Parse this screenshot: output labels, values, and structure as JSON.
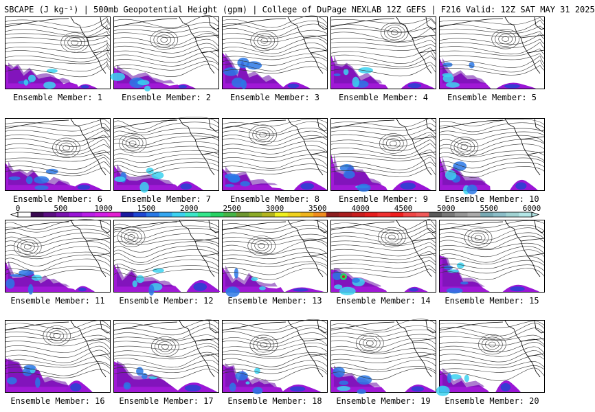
{
  "title": "SBCAPE (J kg⁻¹) | 500mb Geopotential Height (gpm) | College of DuPage NEXLAB 12Z GEFS | F216 Valid: 12Z SAT MAY 31 2025",
  "colorbar": {
    "ticks": [
      "0",
      "500",
      "1000",
      "1500",
      "2000",
      "2500",
      "3000",
      "3500",
      "4000",
      "4500",
      "5000",
      "5500",
      "6000"
    ],
    "colors": [
      "#ffffff",
      "#3a0a52",
      "#5b0f82",
      "#7a12b0",
      "#9a16d6",
      "#b81ee6",
      "#d21ee6",
      "#e31ed2",
      "#1a1aa0",
      "#1e46d2",
      "#2878e6",
      "#34a6f0",
      "#3cd2f0",
      "#3ce6c8",
      "#34e68c",
      "#28d264",
      "#46b446",
      "#6e9630",
      "#8caa28",
      "#b4b41e",
      "#f0f01e",
      "#f0d21e",
      "#f0b41e",
      "#f08c1e",
      "#8c1e1e",
      "#aa1e1e",
      "#c81e1e",
      "#e61e1e",
      "#f03232",
      "#f01e1e",
      "#f04646",
      "#f05a5a",
      "#5a5a5a",
      "#787878",
      "#969696",
      "#aaaaaa",
      "#78aab4",
      "#8cbec8",
      "#a0d2d2",
      "#b4e6e6"
    ]
  },
  "members": [
    {
      "label": "Ensemble Member: 1"
    },
    {
      "label": "Ensemble Member: 2"
    },
    {
      "label": "Ensemble Member: 3"
    },
    {
      "label": "Ensemble Member: 4"
    },
    {
      "label": "Ensemble Member: 5"
    },
    {
      "label": "Ensemble Member: 6"
    },
    {
      "label": "Ensemble Member: 7"
    },
    {
      "label": "Ensemble Member: 8"
    },
    {
      "label": "Ensemble Member: 9"
    },
    {
      "label": "Ensemble Member: 10"
    },
    {
      "label": "Ensemble Member: 11"
    },
    {
      "label": "Ensemble Member: 12"
    },
    {
      "label": "Ensemble Member: 13"
    },
    {
      "label": "Ensemble Member: 14"
    },
    {
      "label": "Ensemble Member: 15"
    },
    {
      "label": "Ensemble Member: 16"
    },
    {
      "label": "Ensemble Member: 17"
    },
    {
      "label": "Ensemble Member: 18"
    },
    {
      "label": "Ensemble Member: 19"
    },
    {
      "label": "Ensemble Member: 20"
    }
  ]
}
